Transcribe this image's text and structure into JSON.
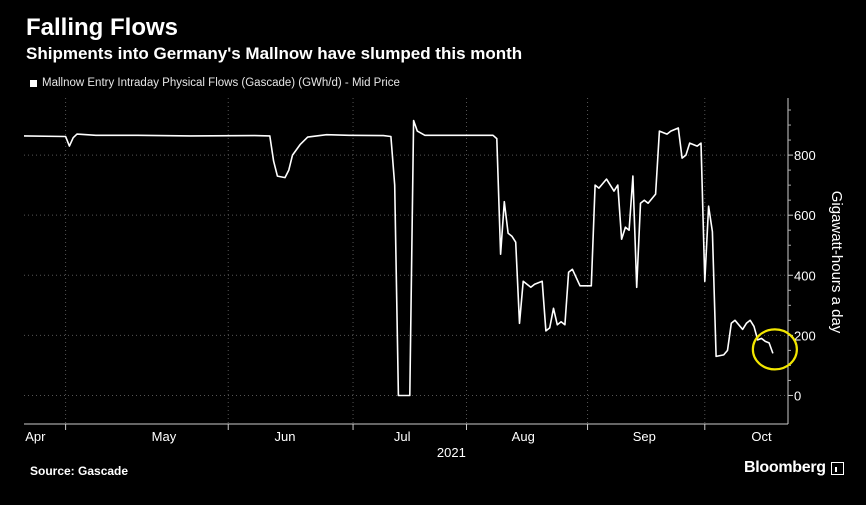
{
  "chart_data": {
    "type": "line",
    "title": "Falling Flows",
    "subtitle": "Shipments into Germany's Mallnow have slumped this month",
    "legend": "Mallnow Entry Intraday Physical Flows (Gascade) (GWh/d) - Mid Price",
    "ylabel": "Gigawatt-hours a day",
    "year_label": "2021",
    "source": "Source: Gascade",
    "brand": "Bloomberg",
    "ylim": [
      -95,
      990
    ],
    "yticks": [
      0,
      200,
      400,
      600,
      800
    ],
    "xlim": [
      "2021-04-01",
      "2021-10-20"
    ],
    "xticks": [
      {
        "label": "Apr",
        "date": "2021-04-04"
      },
      {
        "label": "May",
        "date": "2021-05-08"
      },
      {
        "label": "Jun",
        "date": "2021-06-09"
      },
      {
        "label": "Jul",
        "date": "2021-07-10"
      },
      {
        "label": "Aug",
        "date": "2021-08-11"
      },
      {
        "label": "Sep",
        "date": "2021-09-12"
      },
      {
        "label": "Oct",
        "date": "2021-10-13"
      }
    ],
    "gridlines": [
      "2021-04-12",
      "2021-05-25",
      "2021-06-27",
      "2021-07-27",
      "2021-08-28",
      "2021-09-28"
    ],
    "highlight": {
      "date": "2021-10-16",
      "value": 140,
      "color": "#f2e600"
    },
    "line_color": "#ffffff",
    "series": [
      {
        "points": [
          [
            "2021-04-01",
            864
          ],
          [
            "2021-04-12",
            862
          ],
          [
            "2021-04-13",
            830
          ],
          [
            "2021-04-14",
            858
          ],
          [
            "2021-04-15",
            870
          ],
          [
            "2021-04-20",
            866
          ],
          [
            "2021-05-01",
            866
          ],
          [
            "2021-05-15",
            864
          ],
          [
            "2021-06-01",
            865
          ],
          [
            "2021-06-05",
            864
          ],
          [
            "2021-06-06",
            780
          ],
          [
            "2021-06-07",
            730
          ],
          [
            "2021-06-09",
            725
          ],
          [
            "2021-06-10",
            750
          ],
          [
            "2021-06-11",
            800
          ],
          [
            "2021-06-13",
            835
          ],
          [
            "2021-06-15",
            860
          ],
          [
            "2021-06-20",
            868
          ],
          [
            "2021-06-26",
            866
          ],
          [
            "2021-07-05",
            865
          ],
          [
            "2021-07-07",
            862
          ],
          [
            "2021-07-08",
            700
          ],
          [
            "2021-07-09",
            0
          ],
          [
            "2021-07-12",
            0
          ],
          [
            "2021-07-13",
            915
          ],
          [
            "2021-07-14",
            880
          ],
          [
            "2021-07-16",
            866
          ],
          [
            "2021-07-25",
            866
          ],
          [
            "2021-08-03",
            866
          ],
          [
            "2021-08-04",
            855
          ],
          [
            "2021-08-05",
            470
          ],
          [
            "2021-08-06",
            645
          ],
          [
            "2021-08-07",
            540
          ],
          [
            "2021-08-08",
            530
          ],
          [
            "2021-08-09",
            510
          ],
          [
            "2021-08-10",
            240
          ],
          [
            "2021-08-11",
            380
          ],
          [
            "2021-08-13",
            360
          ],
          [
            "2021-08-14",
            370
          ],
          [
            "2021-08-16",
            380
          ],
          [
            "2021-08-17",
            215
          ],
          [
            "2021-08-18",
            225
          ],
          [
            "2021-08-19",
            290
          ],
          [
            "2021-08-20",
            235
          ],
          [
            "2021-08-21",
            245
          ],
          [
            "2021-08-22",
            235
          ],
          [
            "2021-08-23",
            410
          ],
          [
            "2021-08-24",
            420
          ],
          [
            "2021-08-26",
            365
          ],
          [
            "2021-08-29",
            365
          ],
          [
            "2021-08-30",
            700
          ],
          [
            "2021-08-31",
            690
          ],
          [
            "2021-09-02",
            720
          ],
          [
            "2021-09-04",
            680
          ],
          [
            "2021-09-05",
            700
          ],
          [
            "2021-09-06",
            520
          ],
          [
            "2021-09-07",
            560
          ],
          [
            "2021-09-08",
            550
          ],
          [
            "2021-09-09",
            730
          ],
          [
            "2021-09-10",
            360
          ],
          [
            "2021-09-11",
            640
          ],
          [
            "2021-09-12",
            650
          ],
          [
            "2021-09-13",
            640
          ],
          [
            "2021-09-15",
            670
          ],
          [
            "2021-09-16",
            880
          ],
          [
            "2021-09-18",
            870
          ],
          [
            "2021-09-19",
            880
          ],
          [
            "2021-09-21",
            890
          ],
          [
            "2021-09-22",
            790
          ],
          [
            "2021-09-23",
            800
          ],
          [
            "2021-09-24",
            840
          ],
          [
            "2021-09-26",
            830
          ],
          [
            "2021-09-27",
            840
          ],
          [
            "2021-09-28",
            380
          ],
          [
            "2021-09-29",
            630
          ],
          [
            "2021-09-30",
            545
          ],
          [
            "2021-10-01",
            130
          ],
          [
            "2021-10-03",
            135
          ],
          [
            "2021-10-04",
            150
          ],
          [
            "2021-10-05",
            240
          ],
          [
            "2021-10-06",
            250
          ],
          [
            "2021-10-08",
            220
          ],
          [
            "2021-10-09",
            240
          ],
          [
            "2021-10-10",
            250
          ],
          [
            "2021-10-11",
            230
          ],
          [
            "2021-10-12",
            185
          ],
          [
            "2021-10-13",
            190
          ],
          [
            "2021-10-14",
            180
          ],
          [
            "2021-10-15",
            175
          ],
          [
            "2021-10-16",
            140
          ]
        ]
      }
    ]
  }
}
